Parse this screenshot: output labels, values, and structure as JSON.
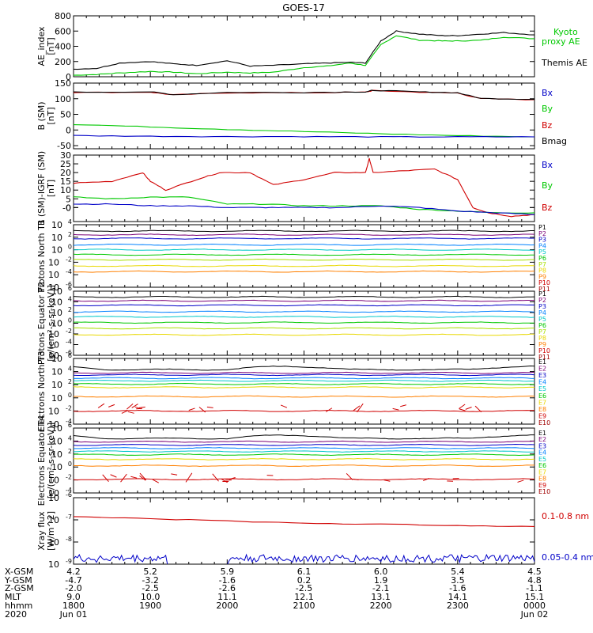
{
  "title": "GOES-17",
  "colors": {
    "axis": "#000000",
    "green": "#00c800",
    "red": "#d00000",
    "blue": "#0000c8",
    "black": "#000000",
    "darkred": "#800000"
  },
  "chart_data": [
    {
      "id": "ae",
      "type": "line",
      "ylabel": "AE_index [nT]",
      "ylim": [
        0,
        800
      ],
      "yticks": [
        "0",
        "200",
        "400",
        "600",
        "800"
      ],
      "legend": [
        {
          "label": "Kyoto",
          "color": "#00c800"
        },
        {
          "label": "proxy AE",
          "color": "#00c800"
        },
        {
          "label": "Themis AE",
          "color": "#000000"
        }
      ],
      "series": [
        {
          "name": "Kyoto",
          "color": "#00c800",
          "x": [
            18.0,
            18.3,
            18.6,
            19.0,
            19.3,
            19.6,
            20.0,
            20.3,
            20.6,
            21.0,
            21.3,
            21.6,
            21.8,
            22.0,
            22.2,
            22.5,
            22.8,
            23.0,
            23.3,
            23.6,
            24.0
          ],
          "y": [
            20,
            30,
            50,
            70,
            60,
            40,
            60,
            50,
            60,
            120,
            140,
            180,
            150,
            420,
            540,
            480,
            470,
            470,
            480,
            520,
            500
          ]
        },
        {
          "name": "Themis AE",
          "color": "#000000",
          "x": [
            18.0,
            18.3,
            18.6,
            19.0,
            19.3,
            19.6,
            20.0,
            20.3,
            20.6,
            21.0,
            21.3,
            21.6,
            21.8,
            22.0,
            22.2,
            22.5,
            22.8,
            23.0,
            23.3,
            23.6,
            24.0
          ],
          "y": [
            100,
            110,
            180,
            200,
            170,
            150,
            210,
            140,
            150,
            170,
            180,
            190,
            180,
            470,
            600,
            560,
            540,
            540,
            560,
            580,
            550
          ]
        }
      ]
    },
    {
      "id": "bsm",
      "type": "line",
      "ylabel": "B (SM) [nT]",
      "ylim": [
        -60,
        150
      ],
      "yticks": [
        "-50",
        "0",
        "50",
        "100",
        "150"
      ],
      "legend": [
        {
          "label": "Bx",
          "color": "#0000c8"
        },
        {
          "label": "By",
          "color": "#00c800"
        },
        {
          "label": "Bz",
          "color": "#d00000"
        },
        {
          "label": "Bmag",
          "color": "#000000"
        }
      ],
      "series": [
        {
          "name": "Bz",
          "color": "#d00000",
          "x": [
            18.0,
            19.0,
            19.3,
            20.0,
            21.0,
            21.8,
            21.9,
            22.5,
            23.0,
            23.3,
            24.0
          ],
          "y": [
            120,
            121,
            112,
            119,
            119,
            121,
            126,
            121,
            118,
            100,
            97
          ]
        },
        {
          "name": "Bmag",
          "color": "#000000",
          "x": [
            18.0,
            19.0,
            19.3,
            20.0,
            21.0,
            21.8,
            21.9,
            22.5,
            23.0,
            23.3,
            24.0
          ],
          "y": [
            121,
            122,
            113,
            120,
            120,
            122,
            127,
            122,
            119,
            101,
            98
          ]
        },
        {
          "name": "By",
          "color": "#00c800",
          "x": [
            18.0,
            19.0,
            20.0,
            21.0,
            22.0,
            23.0,
            24.0
          ],
          "y": [
            18,
            10,
            2,
            -5,
            -12,
            -18,
            -22
          ]
        },
        {
          "name": "Bx",
          "color": "#0000c8",
          "x": [
            18.0,
            19.0,
            20.0,
            21.0,
            22.0,
            23.0,
            24.0
          ],
          "y": [
            -18,
            -20,
            -21,
            -21,
            -22,
            -22,
            -22
          ]
        }
      ]
    },
    {
      "id": "bdiff",
      "type": "line",
      "ylabel": "B (SM)-IGRF (SM) [nT]",
      "ylim": [
        -8,
        30
      ],
      "yticks": [
        "-0",
        "0",
        "5",
        "10",
        "15",
        "20",
        "25",
        "30"
      ],
      "legend": [
        {
          "label": "Bx",
          "color": "#0000c8"
        },
        {
          "label": "By",
          "color": "#00c800"
        },
        {
          "label": "Bz",
          "color": "#d00000"
        }
      ],
      "series": [
        {
          "name": "Bz",
          "color": "#d00000",
          "x": [
            18.0,
            18.5,
            18.9,
            19.0,
            19.2,
            19.6,
            19.9,
            20.3,
            20.6,
            21.0,
            21.4,
            21.8,
            21.85,
            21.9,
            22.3,
            22.7,
            23.0,
            23.2,
            23.4,
            23.7,
            24.0
          ],
          "y": [
            14,
            15,
            20,
            15,
            10,
            16,
            20,
            20,
            13,
            16,
            20,
            20,
            28,
            20,
            21,
            22,
            16,
            0,
            -3,
            -5,
            -4
          ]
        },
        {
          "name": "By",
          "color": "#00c800",
          "x": [
            18.0,
            18.5,
            19.0,
            19.5,
            20.0,
            20.5,
            21.0,
            21.5,
            22.0,
            22.5,
            23.0,
            23.5,
            24.0
          ],
          "y": [
            6,
            5,
            6,
            6,
            2,
            2,
            1,
            1,
            1,
            -1,
            -2,
            -3,
            -3
          ]
        },
        {
          "name": "Bx",
          "color": "#0000c8",
          "x": [
            18.0,
            18.5,
            19.0,
            19.5,
            20.0,
            20.5,
            21.0,
            21.5,
            22.0,
            22.5,
            23.0,
            23.5,
            24.0
          ],
          "y": [
            2,
            2,
            1,
            1,
            0,
            0,
            0,
            0,
            1,
            0,
            -2,
            -3,
            -4
          ]
        }
      ]
    },
    {
      "id": "pn",
      "type": "line",
      "ylabel": "Protons North T1",
      "ylog": true,
      "ylim": [
        -6,
        4
      ],
      "yticks": [
        "10^4",
        "10^2",
        "10^0",
        "10^-2",
        "10^-4",
        "10^-6"
      ],
      "legend": [
        {
          "label": "P1",
          "color": "#000000"
        },
        {
          "label": "P2",
          "color": "#7a0077"
        },
        {
          "label": "P3",
          "color": "#0000c8"
        },
        {
          "label": "P4",
          "color": "#0080ff"
        },
        {
          "label": "P5",
          "color": "#00c8c8"
        },
        {
          "label": "P6",
          "color": "#00c800"
        },
        {
          "label": "P7",
          "color": "#a8e000"
        },
        {
          "label": "P8",
          "color": "#e8d800"
        },
        {
          "label": "P9",
          "color": "#ff8000"
        },
        {
          "label": "P10",
          "color": "#d00000"
        },
        {
          "label": "P11",
          "color": "#a00000"
        }
      ],
      "levels": [
        3.0,
        2.4,
        1.8,
        0.8,
        0.0,
        -0.8,
        -1.6,
        -2.6,
        -3.5
      ]
    },
    {
      "id": "pe",
      "type": "line",
      "ylabel": "Protons Equator T2 [p/(cm²-s-sr-keV)]",
      "ylog": true,
      "ylim": [
        -6,
        4
      ],
      "yticks": [
        "10^6",
        "10^4",
        "10^2",
        "10^0",
        "10^-2",
        "10^-4",
        "10^-6"
      ],
      "legend": [
        {
          "label": "P1",
          "color": "#000000"
        },
        {
          "label": "P2",
          "color": "#7a0077"
        },
        {
          "label": "P3",
          "color": "#0000c8"
        },
        {
          "label": "P4",
          "color": "#0080ff"
        },
        {
          "label": "P5",
          "color": "#00c8c8"
        },
        {
          "label": "P6",
          "color": "#00c800"
        },
        {
          "label": "P7",
          "color": "#a8e000"
        },
        {
          "label": "P8",
          "color": "#e8d800"
        },
        {
          "label": "P9",
          "color": "#ff8000"
        },
        {
          "label": "P10",
          "color": "#d00000"
        },
        {
          "label": "P11",
          "color": "#a00000"
        }
      ],
      "levels": [
        3.1,
        2.5,
        1.8,
        0.8,
        0.0,
        -0.9,
        -1.8,
        -2.8
      ]
    },
    {
      "id": "en",
      "type": "line",
      "ylabel": "Electrons North T3",
      "ylog": true,
      "ylim": [
        -4,
        6
      ],
      "yticks": [
        "10^6",
        "10^4",
        "10^2",
        "10^0",
        "10^-2",
        "10^-4"
      ],
      "legend": [
        {
          "label": "E1",
          "color": "#000000"
        },
        {
          "label": "E2",
          "color": "#7a0077"
        },
        {
          "label": "E3",
          "color": "#0000c8"
        },
        {
          "label": "E4",
          "color": "#0080ff"
        },
        {
          "label": "E5",
          "color": "#00c8c8"
        },
        {
          "label": "E6",
          "color": "#00c800"
        },
        {
          "label": "E7",
          "color": "#e8d800"
        },
        {
          "label": "E8",
          "color": "#ff8000"
        },
        {
          "label": "E9",
          "color": "#d00000"
        },
        {
          "label": "E10",
          "color": "#a00000"
        }
      ],
      "levels": [
        4.3,
        3.8,
        3.5,
        3.0,
        2.6,
        2.1,
        1.6,
        0.2,
        -2.0
      ]
    },
    {
      "id": "ee",
      "type": "line",
      "ylabel": "Electrons Equator T4 [e/(cm²-s-sr-keV)]",
      "ylog": true,
      "ylim": [
        -4,
        6
      ],
      "yticks": [
        "10^6",
        "10^4",
        "10^2",
        "10^0",
        "10^-2",
        "10^-4"
      ],
      "legend": [
        {
          "label": "E1",
          "color": "#000000"
        },
        {
          "label": "E2",
          "color": "#7a0077"
        },
        {
          "label": "E3",
          "color": "#0000c8"
        },
        {
          "label": "E4",
          "color": "#0080ff"
        },
        {
          "label": "E5",
          "color": "#00c8c8"
        },
        {
          "label": "E6",
          "color": "#00c800"
        },
        {
          "label": "E7",
          "color": "#e8d800"
        },
        {
          "label": "E8",
          "color": "#ff8000"
        },
        {
          "label": "E9",
          "color": "#d00000"
        },
        {
          "label": "E10",
          "color": "#a00000"
        }
      ],
      "levels": [
        4.4,
        3.9,
        3.4,
        2.9,
        2.4,
        1.9,
        1.2,
        0.2,
        -1.9
      ]
    },
    {
      "id": "xray",
      "type": "line",
      "ylabel": "Xray flux [W/m^2]",
      "ylog": true,
      "ylim": [
        -9,
        -6
      ],
      "yticks": [
        "10^-6",
        "10^-7",
        "10^-8",
        "10^-9"
      ],
      "legend": [
        {
          "label": "0.1-0.8 nm",
          "color": "#d00000"
        },
        {
          "label": "0.05-0.4 nm",
          "color": "#0000c8"
        }
      ],
      "series": [
        {
          "name": "0.1-0.8 nm",
          "color": "#d00000",
          "x": [
            18.0,
            19.0,
            20.0,
            21.0,
            22.0,
            23.0,
            24.0
          ],
          "y": [
            -6.85,
            -6.95,
            -7.05,
            -7.15,
            -7.2,
            -7.25,
            -7.3
          ]
        }
      ]
    }
  ],
  "x_axis": {
    "row_labels": [
      "X-GSM",
      "Y-GSM",
      "Z-GSM",
      "MLT",
      "hhmm",
      "2020"
    ],
    "columns": [
      {
        "vals": [
          "4.2",
          "-4.7",
          "-2.0",
          "9.0",
          "1800",
          "Jun 01"
        ]
      },
      {
        "vals": [
          "5.2",
          "-3.2",
          "-2.5",
          "10.0",
          "1900",
          ""
        ]
      },
      {
        "vals": [
          "5.9",
          "-1.6",
          "-2.6",
          "11.1",
          "2000",
          ""
        ]
      },
      {
        "vals": [
          "6.1",
          "0.2",
          "-2.5",
          "12.1",
          "2100",
          ""
        ]
      },
      {
        "vals": [
          "6.0",
          "1.9",
          "-2.1",
          "13.1",
          "2200",
          ""
        ]
      },
      {
        "vals": [
          "5.4",
          "3.5",
          "-1.6",
          "14.1",
          "2300",
          ""
        ]
      },
      {
        "vals": [
          "4.5",
          "4.8",
          "-1.1",
          "15.1",
          "0000",
          "Jun 02"
        ]
      }
    ]
  }
}
